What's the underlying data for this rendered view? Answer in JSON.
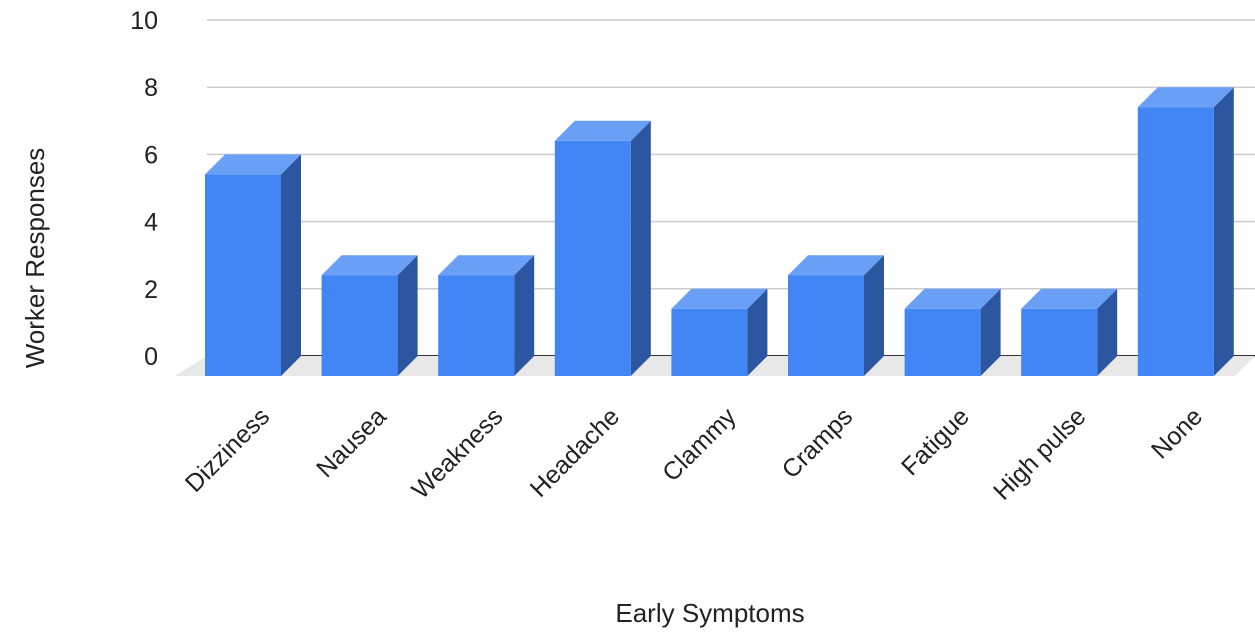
{
  "chart_data": {
    "type": "bar",
    "style": "3d",
    "categories": [
      "Dizziness",
      "Nausea",
      "Weakness",
      "Headache",
      "Clammy",
      "Cramps",
      "Fatigue",
      "High pulse",
      "None"
    ],
    "values": [
      6,
      3,
      3,
      7,
      2,
      3,
      2,
      2,
      8
    ],
    "xlabel": "Early Symptoms",
    "ylabel": "Worker Responses",
    "ylim": [
      0,
      10
    ],
    "yticks": [
      0,
      2,
      4,
      6,
      8,
      10
    ],
    "grid": true,
    "legend": "none",
    "colors": {
      "bar_front": "#4285f4",
      "bar_top": "#6a9ff6",
      "bar_side": "#2d56a0",
      "floor": "#e8e8e8",
      "gridline": "#cccccc",
      "baseline": "#333333"
    }
  }
}
